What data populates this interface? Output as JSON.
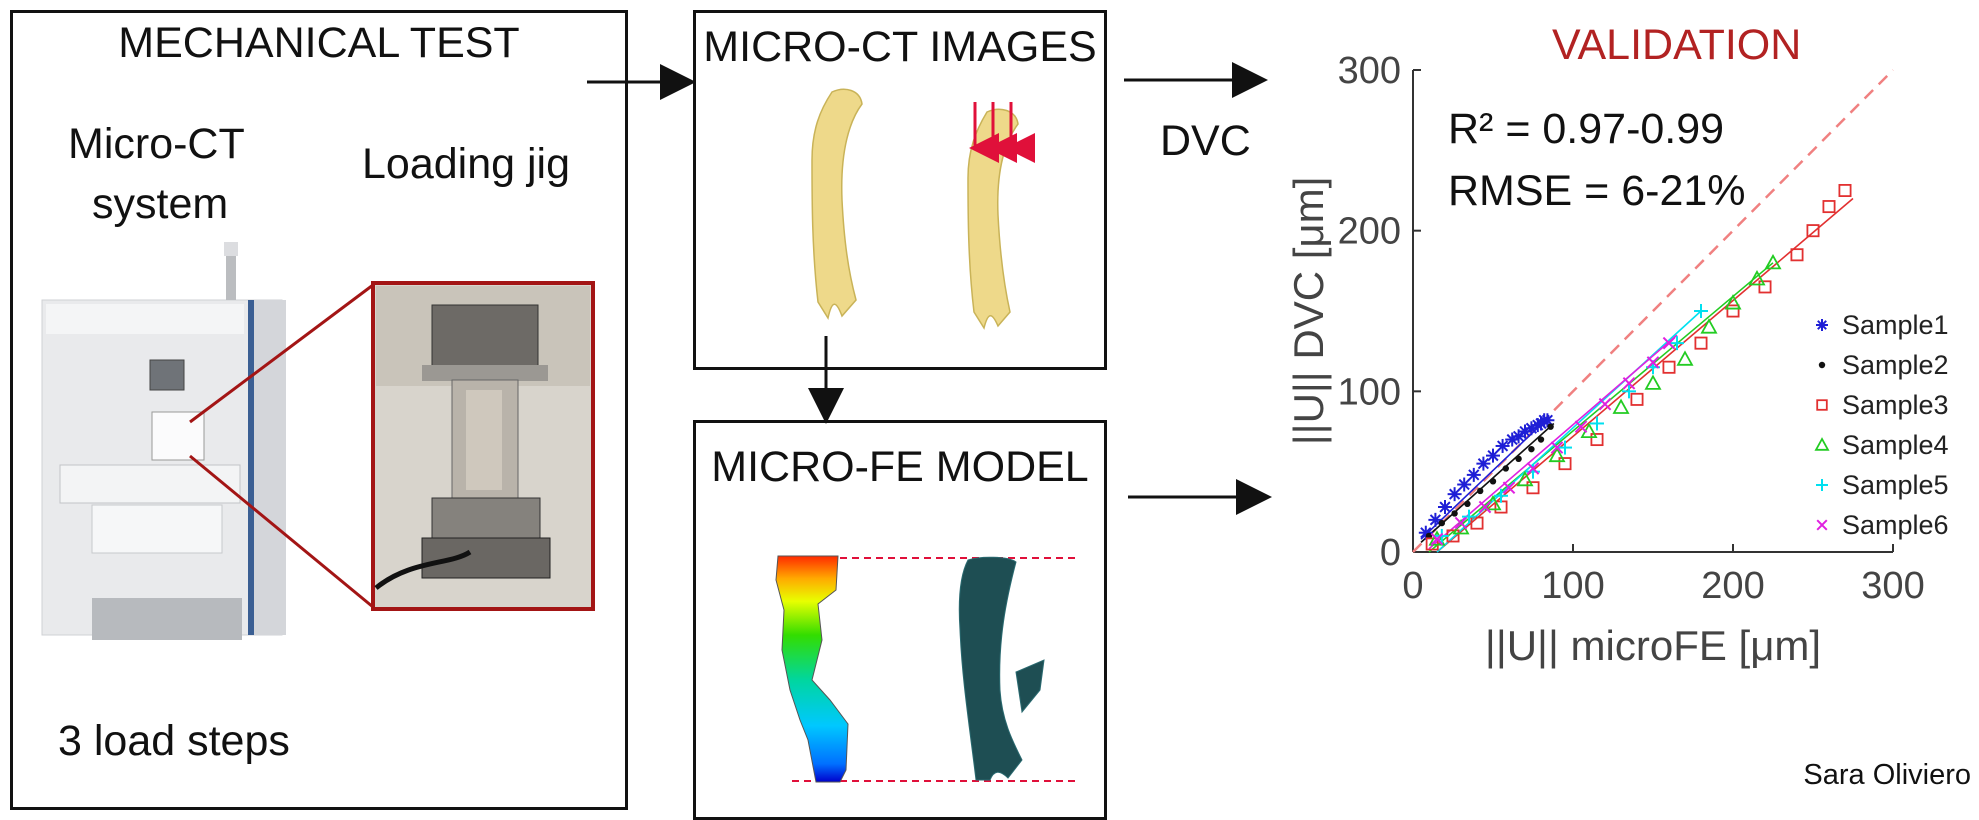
{
  "mechanical": {
    "title": "MECHANICAL TEST",
    "micro_ct_label_line1": "Micro-CT",
    "micro_ct_label_line2": "system",
    "loading_jig_label": "Loading jig",
    "load_steps": "3 load steps"
  },
  "microct": {
    "title": "MICRO-CT IMAGES"
  },
  "dvc_label": "DVC",
  "microfe": {
    "title": "MICRO-FE MODEL"
  },
  "validation": {
    "title": "VALIDATION",
    "r2": "R² = 0.97-0.99",
    "rmse": "RMSE = 6-21%",
    "title_color": "#b22222"
  },
  "credit": "Sara Oliviero",
  "chart_data": {
    "type": "scatter",
    "xlabel": "||U|| microFE [μm]",
    "ylabel": "||U|| DVC [μm]",
    "xlim": [
      0,
      300
    ],
    "ylim": [
      0,
      300
    ],
    "xticks": [
      0,
      100,
      200,
      300
    ],
    "yticks": [
      0,
      100,
      200,
      300
    ],
    "identity_line": true,
    "legend_position": "right",
    "series": [
      {
        "name": "Sample1",
        "marker": "asterisk",
        "color": "#1f1fd6",
        "x": [
          8,
          14,
          20,
          26,
          32,
          38,
          44,
          50,
          56,
          62,
          66,
          70,
          74,
          78,
          80,
          82,
          84
        ],
        "y": [
          12,
          20,
          28,
          36,
          42,
          48,
          55,
          60,
          66,
          70,
          72,
          75,
          77,
          79,
          80,
          82,
          82
        ]
      },
      {
        "name": "Sample2",
        "marker": "dot",
        "color": "#111111",
        "x": [
          10,
          18,
          26,
          34,
          42,
          50,
          58,
          66,
          74,
          80,
          86
        ],
        "y": [
          10,
          18,
          24,
          30,
          38,
          44,
          52,
          58,
          64,
          70,
          78
        ]
      },
      {
        "name": "Sample3",
        "marker": "square",
        "color": "#e23030",
        "x": [
          12,
          25,
          40,
          55,
          75,
          95,
          115,
          140,
          160,
          180,
          200,
          220,
          240,
          250,
          260,
          270
        ],
        "y": [
          5,
          10,
          18,
          28,
          40,
          55,
          70,
          95,
          115,
          130,
          150,
          165,
          185,
          200,
          215,
          225
        ]
      },
      {
        "name": "Sample4",
        "marker": "triangle",
        "color": "#22cc22",
        "x": [
          15,
          30,
          50,
          70,
          90,
          110,
          130,
          150,
          170,
          185,
          200,
          215,
          225
        ],
        "y": [
          8,
          15,
          30,
          45,
          60,
          75,
          90,
          105,
          120,
          140,
          155,
          170,
          180
        ]
      },
      {
        "name": "Sample5",
        "marker": "plus",
        "color": "#00e0f0",
        "x": [
          18,
          35,
          55,
          75,
          95,
          115,
          135,
          150,
          165,
          180
        ],
        "y": [
          10,
          22,
          35,
          50,
          65,
          80,
          100,
          115,
          130,
          150
        ]
      },
      {
        "name": "Sample6",
        "marker": "x",
        "color": "#e020e0",
        "x": [
          15,
          30,
          45,
          60,
          75,
          90,
          105,
          120,
          135,
          150,
          160
        ],
        "y": [
          8,
          18,
          28,
          40,
          52,
          65,
          78,
          92,
          105,
          118,
          130
        ]
      }
    ],
    "fit_lines": [
      {
        "color": "#1f1fd6",
        "x": [
          5,
          85
        ],
        "y": [
          8,
          84
        ]
      },
      {
        "color": "#111111",
        "x": [
          5,
          88
        ],
        "y": [
          6,
          80
        ]
      },
      {
        "color": "#e23030",
        "x": [
          15,
          275
        ],
        "y": [
          0,
          220
        ]
      },
      {
        "color": "#22cc22",
        "x": [
          10,
          225
        ],
        "y": [
          0,
          180
        ]
      },
      {
        "color": "#00e0f0",
        "x": [
          15,
          180
        ],
        "y": [
          0,
          150
        ]
      },
      {
        "color": "#e020e0",
        "x": [
          10,
          165
        ],
        "y": [
          2,
          135
        ]
      }
    ]
  }
}
